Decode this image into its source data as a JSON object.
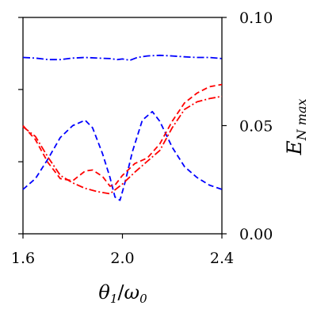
{
  "chart_data": {
    "type": "line",
    "xlabel": "θ1/ω0",
    "ylabel": "E_N max",
    "xlim": [
      1.6,
      2.4
    ],
    "ylim": [
      0.0,
      0.1
    ],
    "x_ticks": [
      1.6,
      2.0,
      2.4
    ],
    "x_tick_labels": [
      "1.6",
      "2.0",
      "2.4"
    ],
    "y_ticks": [
      0.0,
      0.05,
      0.1
    ],
    "y_tick_labels": [
      "0.00",
      "0.05",
      "0.10"
    ],
    "left_minor_ticks": [
      0.0,
      0.0333,
      0.0667,
      0.1
    ],
    "grid": false,
    "series": [
      {
        "color": "#0000ff",
        "dash": "dashdot",
        "x": [
          1.6,
          1.65,
          1.7,
          1.75,
          1.8,
          1.85,
          1.9,
          1.95,
          1.98,
          2.0,
          2.03,
          2.06,
          2.1,
          2.15,
          2.2,
          2.25,
          2.3,
          2.35,
          2.4
        ],
        "y": [
          0.0815,
          0.0812,
          0.0805,
          0.0805,
          0.0812,
          0.0815,
          0.0812,
          0.081,
          0.0805,
          0.0808,
          0.0802,
          0.0815,
          0.0822,
          0.0825,
          0.0822,
          0.0818,
          0.0815,
          0.0815,
          0.081
        ]
      },
      {
        "color": "#0000ff",
        "dash": "dashed",
        "x": [
          1.6,
          1.65,
          1.7,
          1.75,
          1.8,
          1.85,
          1.88,
          1.92,
          1.95,
          1.97,
          1.99,
          2.01,
          2.04,
          2.08,
          2.12,
          2.15,
          2.2,
          2.25,
          2.3,
          2.35,
          2.4
        ],
        "y": [
          0.0205,
          0.0255,
          0.0345,
          0.0445,
          0.05,
          0.0525,
          0.049,
          0.037,
          0.026,
          0.017,
          0.0155,
          0.0235,
          0.038,
          0.0525,
          0.0565,
          0.052,
          0.04,
          0.031,
          0.026,
          0.0225,
          0.0205
        ]
      },
      {
        "color": "#ff0000",
        "dash": "dashed",
        "x": [
          1.6,
          1.65,
          1.7,
          1.75,
          1.8,
          1.85,
          1.88,
          1.92,
          1.95,
          1.97,
          2.0,
          2.05,
          2.1,
          2.15,
          2.2,
          2.25,
          2.3,
          2.35,
          2.4
        ],
        "y": [
          0.05,
          0.0435,
          0.033,
          0.0255,
          0.0245,
          0.029,
          0.0295,
          0.0265,
          0.022,
          0.0225,
          0.027,
          0.0325,
          0.035,
          0.0415,
          0.052,
          0.0605,
          0.065,
          0.068,
          0.069
        ]
      },
      {
        "color": "#ff0000",
        "dash": "dashdot",
        "x": [
          1.6,
          1.65,
          1.7,
          1.75,
          1.8,
          1.85,
          1.9,
          1.95,
          2.0,
          2.05,
          2.1,
          2.15,
          2.2,
          2.25,
          2.3,
          2.35,
          2.4
        ],
        "y": [
          0.0495,
          0.045,
          0.0355,
          0.027,
          0.0235,
          0.021,
          0.0195,
          0.0185,
          0.023,
          0.0285,
          0.0335,
          0.0385,
          0.049,
          0.0575,
          0.061,
          0.0625,
          0.0635
        ]
      }
    ]
  }
}
